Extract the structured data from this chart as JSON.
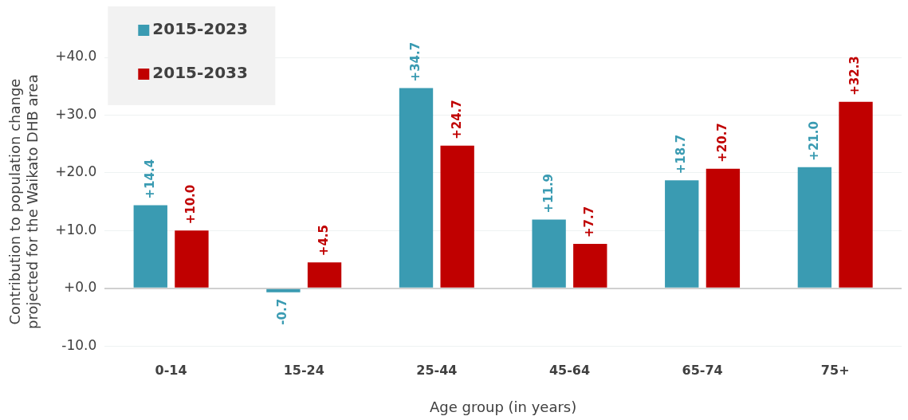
{
  "chart_data": {
    "type": "bar",
    "xlabel": "Age group (in years)",
    "ylabel": [
      "Contribution to population change",
      "projected for the Waikato DHB area"
    ],
    "categories": [
      "0-14",
      "15-24",
      "25-44",
      "45-64",
      "65-74",
      "75+"
    ],
    "series": [
      {
        "name": "2015-2023",
        "color": "#3a9bb2",
        "values": [
          14.4,
          -0.7,
          34.7,
          11.9,
          18.7,
          21.0
        ],
        "value_labels": [
          "+14.4",
          "-0.7",
          "+34.7",
          "+11.9",
          "+18.7",
          "+21.0"
        ]
      },
      {
        "name": "2015-2033",
        "color": "#c00000",
        "values": [
          10.0,
          4.5,
          24.7,
          7.7,
          20.7,
          32.3
        ],
        "value_labels": [
          "+10.0",
          "+4.5",
          "+24.7",
          "+7.7",
          "+20.7",
          "+32.3"
        ]
      }
    ],
    "ylim": [
      -10,
      40
    ],
    "yticks": [
      {
        "value": -10,
        "label": "-10.0"
      },
      {
        "value": 0,
        "label": "+0.0"
      },
      {
        "value": 10,
        "label": "+10.0"
      },
      {
        "value": 20,
        "label": "+20.0"
      },
      {
        "value": 30,
        "label": "+30.0"
      },
      {
        "value": 40,
        "label": "+40.0"
      }
    ],
    "grid": "y",
    "legend": "top left"
  }
}
